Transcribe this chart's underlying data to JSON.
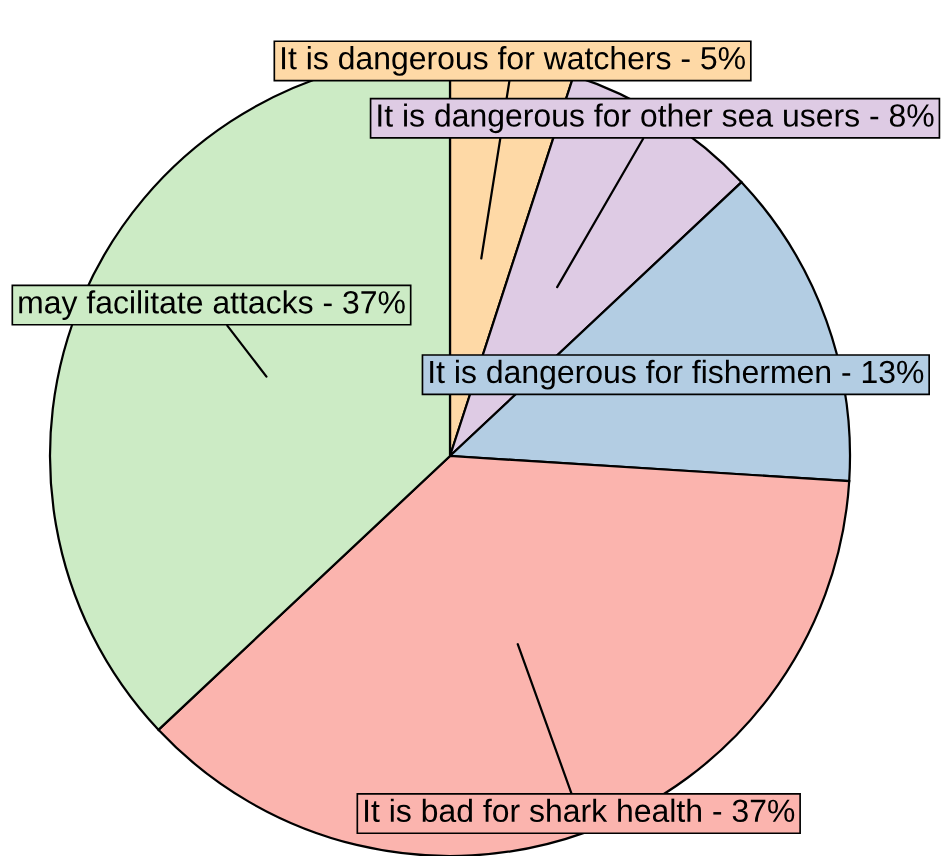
{
  "chart_data": {
    "type": "pie",
    "categories": [
      "It is dangerous for watchers - 5%",
      "It is dangerous for other sea users - 8%",
      "It is dangerous for fishermen - 13%",
      "It is bad for shark health - 37%",
      "may facilitate attacks - 37%"
    ],
    "values": [
      5,
      8,
      13,
      37,
      37
    ],
    "colors": [
      "#fed9a6",
      "#decbe4",
      "#b3cde3",
      "#fbb4ae",
      "#ccebc5"
    ]
  }
}
